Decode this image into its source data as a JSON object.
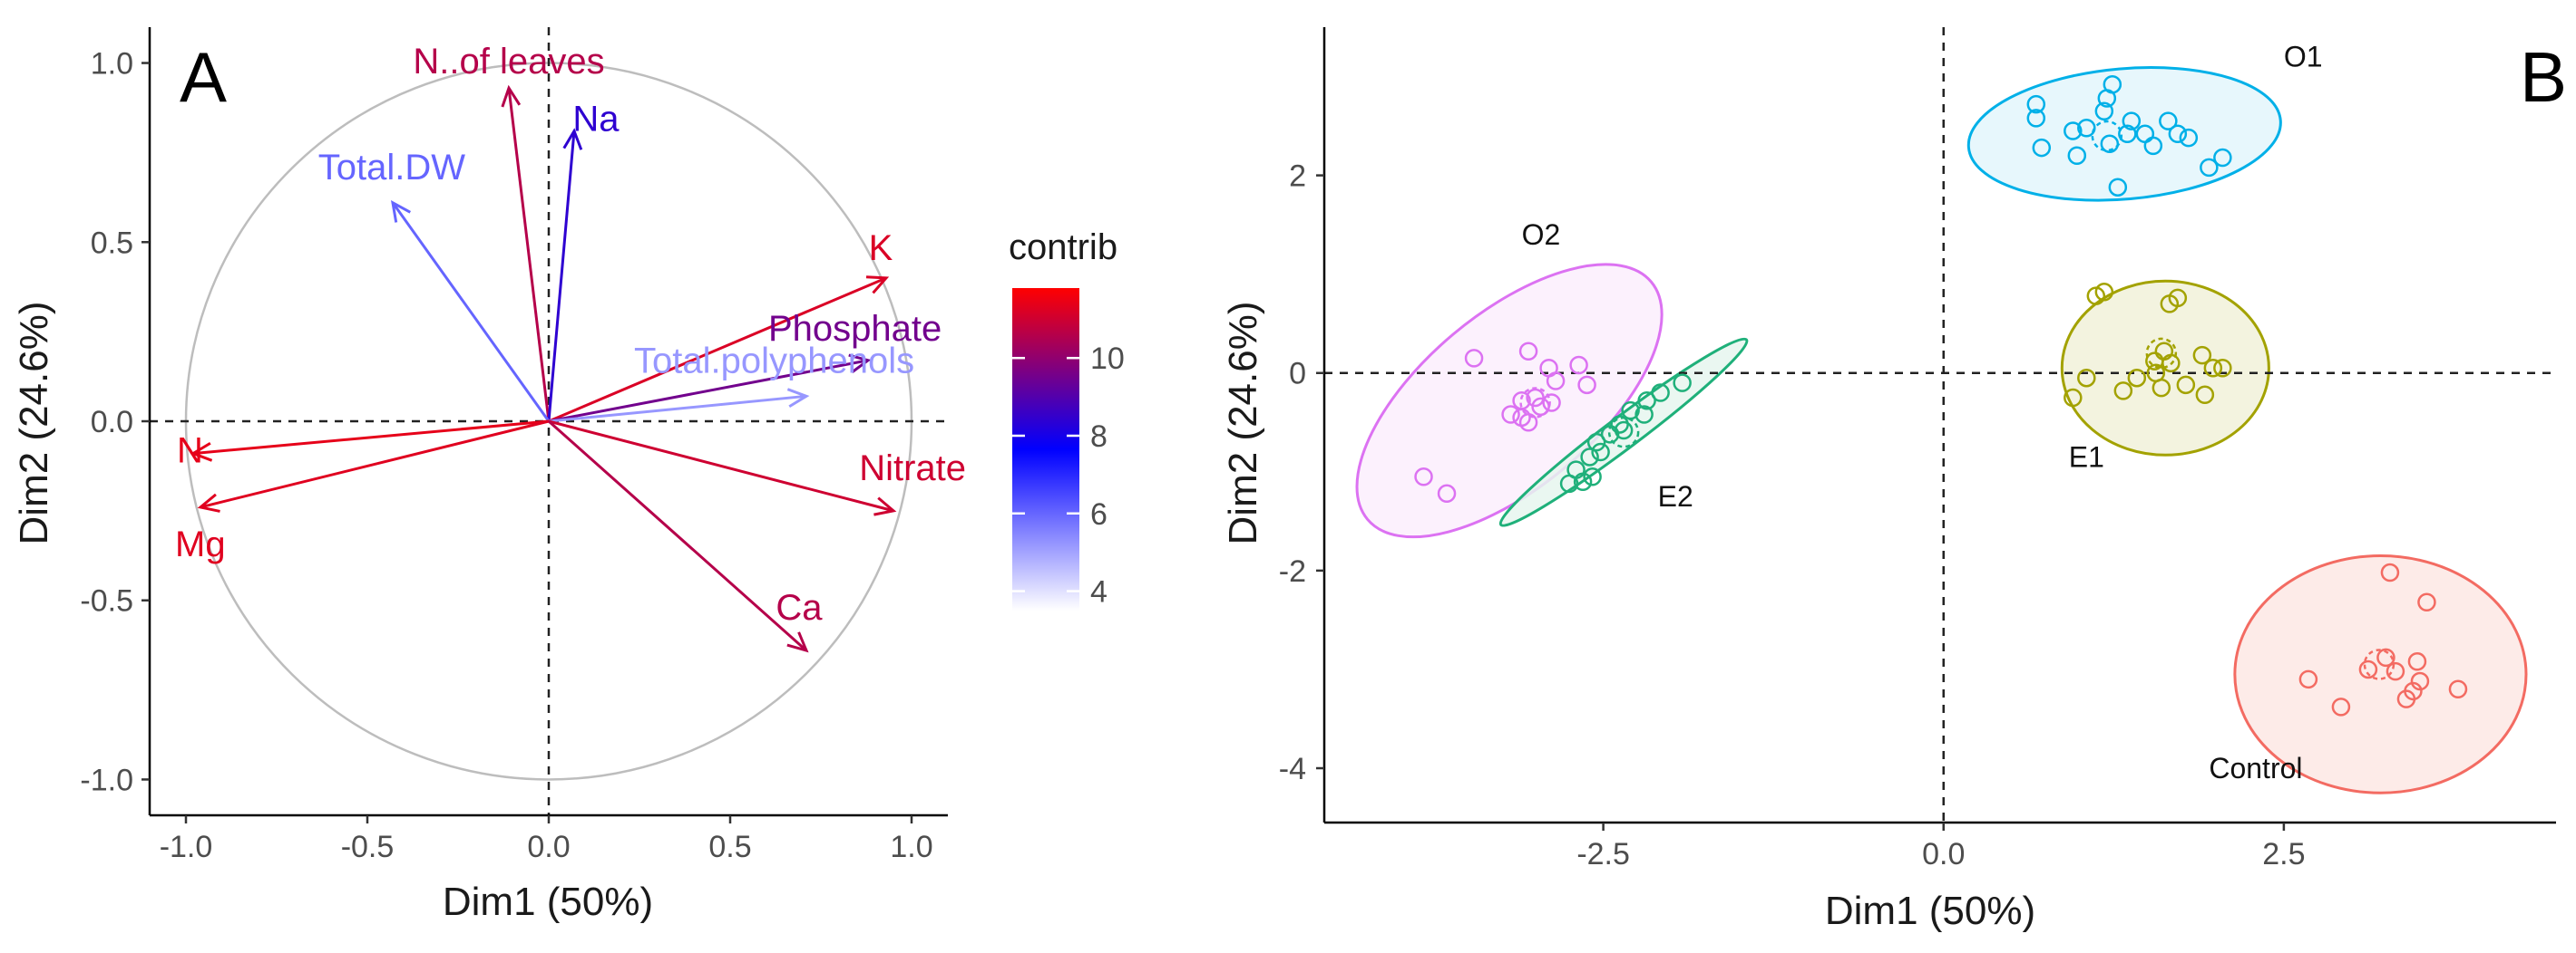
{
  "figure": {
    "panel_a_letter": "A",
    "panel_b_letter": "B"
  },
  "chart_data": [
    {
      "type": "scatter",
      "subtype": "pca-variable-correlation-circle",
      "title": "",
      "xlabel": "Dim1 (50%)",
      "ylabel": "Dim2 (24.6%)",
      "xlim": [
        -1.1,
        1.1
      ],
      "ylim": [
        -1.1,
        1.1
      ],
      "x_ticks": [
        -1.0,
        -0.5,
        0.0,
        0.5,
        1.0
      ],
      "x_tick_labels": [
        "-1.0",
        "-0.5",
        "0.0",
        "0.5",
        "1.0"
      ],
      "y_ticks": [
        -1.0,
        -0.5,
        0.0,
        0.5,
        1.0
      ],
      "y_tick_labels": [
        "-1.0",
        "-0.5",
        "0.0",
        "0.5",
        "1.0"
      ],
      "circle_radius": 1.0,
      "grid": false,
      "variables": [
        {
          "name": "N..of leaves",
          "x": -0.11,
          "y": 0.93,
          "contrib": 10.6
        },
        {
          "name": "Na",
          "x": 0.07,
          "y": 0.81,
          "contrib": 8.4
        },
        {
          "name": "Total.DW",
          "x": -0.43,
          "y": 0.61,
          "contrib": 6.0
        },
        {
          "name": "K",
          "x": 0.93,
          "y": 0.4,
          "contrib": 11.2
        },
        {
          "name": "Phosphate",
          "x": 0.88,
          "y": 0.17,
          "contrib": 9.5
        },
        {
          "name": "Total.polyphenols",
          "x": 0.71,
          "y": 0.07,
          "contrib": 5.2
        },
        {
          "name": "N",
          "x": -0.98,
          "y": -0.09,
          "contrib": 11.4
        },
        {
          "name": "Mg",
          "x": -0.96,
          "y": -0.24,
          "contrib": 11.3
        },
        {
          "name": "Nitrate",
          "x": 0.95,
          "y": -0.25,
          "contrib": 11.0
        },
        {
          "name": "Ca",
          "x": 0.71,
          "y": -0.64,
          "contrib": 10.6
        }
      ],
      "legend": {
        "title": "contrib",
        "min": 3.5,
        "max": 11.8,
        "tick_values": [
          4,
          6,
          8,
          10
        ],
        "tick_labels": [
          "4",
          "6",
          "8",
          "10"
        ],
        "gradient": [
          "#ffffff",
          "#0000ff",
          "#ff0000"
        ],
        "placement": "right"
      }
    },
    {
      "type": "scatter",
      "subtype": "pca-individuals-with-confidence-ellipses",
      "title": "",
      "xlabel": "Dim1 (50%)",
      "ylabel": "Dim2 (24.6%)",
      "xlim": [
        -4.55,
        4.5
      ],
      "ylim": [
        -4.55,
        3.5
      ],
      "x_ticks": [
        -2.5,
        0.0,
        2.5
      ],
      "x_tick_labels": [
        "-2.5",
        "0.0",
        "2.5"
      ],
      "y_ticks": [
        -4,
        -2,
        0,
        2
      ],
      "y_tick_labels": [
        "-4",
        "-2",
        "0",
        "2"
      ],
      "grid": false,
      "groups": [
        {
          "name": "O1",
          "color": "#00b0e8",
          "fill": "#e3f6fc",
          "label_at": [
            2.5,
            3.1
          ],
          "ellipse": {
            "cx": 1.33,
            "cy": 2.42,
            "rx": 1.15,
            "ry": 0.66,
            "angle_deg": -5
          },
          "centroid": [
            1.2,
            2.4
          ],
          "points": [
            [
              0.68,
              2.72
            ],
            [
              0.68,
              2.58
            ],
            [
              0.72,
              2.28
            ],
            [
              0.95,
              2.45
            ],
            [
              1.05,
              2.48
            ],
            [
              1.18,
              2.65
            ],
            [
              1.24,
              2.92
            ],
            [
              1.2,
              2.78
            ],
            [
              1.35,
              2.42
            ],
            [
              1.38,
              2.55
            ],
            [
              1.22,
              2.32
            ],
            [
              1.28,
              1.88
            ],
            [
              1.48,
              2.42
            ],
            [
              1.65,
              2.55
            ],
            [
              1.72,
              2.42
            ],
            [
              1.8,
              2.38
            ],
            [
              1.95,
              2.08
            ],
            [
              2.05,
              2.18
            ],
            [
              0.98,
              2.2
            ],
            [
              1.54,
              2.3
            ]
          ]
        },
        {
          "name": "E1",
          "color": "#a3a200",
          "fill": "#f1f1d9",
          "label_at": [
            0.92,
            -0.95
          ],
          "ellipse": {
            "cx": 1.63,
            "cy": 0.05,
            "rx": 0.76,
            "ry": 0.88,
            "angle_deg": 0
          },
          "centroid": [
            1.6,
            0.2
          ],
          "points": [
            [
              1.12,
              0.78
            ],
            [
              1.18,
              0.82
            ],
            [
              1.66,
              0.7
            ],
            [
              1.72,
              0.76
            ],
            [
              1.9,
              0.18
            ],
            [
              1.98,
              0.05
            ],
            [
              2.05,
              0.05
            ],
            [
              1.78,
              -0.12
            ],
            [
              1.92,
              -0.22
            ],
            [
              1.56,
              0.0
            ],
            [
              1.6,
              -0.15
            ],
            [
              1.42,
              -0.05
            ],
            [
              1.32,
              -0.18
            ],
            [
              1.05,
              -0.05
            ],
            [
              0.95,
              -0.25
            ],
            [
              1.62,
              0.22
            ],
            [
              1.55,
              0.12
            ],
            [
              1.67,
              0.1
            ]
          ]
        },
        {
          "name": "O2",
          "color": "#dc72f2",
          "fill": "#fbeefd",
          "label_at": [
            -3.1,
            1.3
          ],
          "ellipse": {
            "cx": -3.19,
            "cy": -0.28,
            "rx": 1.36,
            "ry": 0.88,
            "angle_deg": -40
          },
          "centroid": [
            -3.0,
            -0.3
          ],
          "points": [
            [
              -3.45,
              0.15
            ],
            [
              -3.05,
              0.22
            ],
            [
              -2.9,
              0.05
            ],
            [
              -2.68,
              0.08
            ],
            [
              -2.62,
              -0.12
            ],
            [
              -2.85,
              -0.08
            ],
            [
              -3.1,
              -0.28
            ],
            [
              -3.18,
              -0.42
            ],
            [
              -3.0,
              -0.25
            ],
            [
              -2.88,
              -0.3
            ],
            [
              -3.1,
              -0.45
            ],
            [
              -3.05,
              -0.5
            ],
            [
              -3.82,
              -1.05
            ],
            [
              -3.65,
              -1.22
            ],
            [
              -2.96,
              -0.34
            ]
          ]
        },
        {
          "name": "E2",
          "color": "#1fb07a",
          "fill": "#e6f6ef",
          "label_at": [
            -2.1,
            -1.35
          ],
          "ellipse": {
            "cx": -2.35,
            "cy": -0.6,
            "rx": 1.13,
            "ry": 0.16,
            "angle_deg": -37
          },
          "centroid": [
            -2.35,
            -0.6
          ],
          "points": [
            [
              -1.92,
              -0.1
            ],
            [
              -2.08,
              -0.2
            ],
            [
              -2.18,
              -0.28
            ],
            [
              -2.2,
              -0.42
            ],
            [
              -2.3,
              -0.38
            ],
            [
              -2.38,
              -0.52
            ],
            [
              -2.45,
              -0.62
            ],
            [
              -2.55,
              -0.7
            ],
            [
              -2.52,
              -0.8
            ],
            [
              -2.6,
              -0.85
            ],
            [
              -2.7,
              -0.98
            ],
            [
              -2.65,
              -1.1
            ],
            [
              -2.58,
              -1.05
            ],
            [
              -2.75,
              -1.12
            ],
            [
              -2.35,
              -0.58
            ]
          ]
        },
        {
          "name": "Control",
          "color": "#f36b62",
          "fill": "#fde7e4",
          "label_at": [
            1.95,
            -4.1
          ],
          "ellipse": {
            "cx": 3.21,
            "cy": -3.05,
            "rx": 1.07,
            "ry": 1.2,
            "angle_deg": 0
          },
          "centroid": [
            3.2,
            -2.95
          ],
          "points": [
            [
              3.28,
              -2.02
            ],
            [
              3.55,
              -2.32
            ],
            [
              2.68,
              -3.1
            ],
            [
              2.92,
              -3.38
            ],
            [
              3.12,
              -3.0
            ],
            [
              3.32,
              -3.02
            ],
            [
              3.48,
              -2.92
            ],
            [
              3.5,
              -3.12
            ],
            [
              3.45,
              -3.22
            ],
            [
              3.4,
              -3.3
            ],
            [
              3.78,
              -3.2
            ],
            [
              3.25,
              -2.88
            ]
          ]
        }
      ]
    }
  ]
}
